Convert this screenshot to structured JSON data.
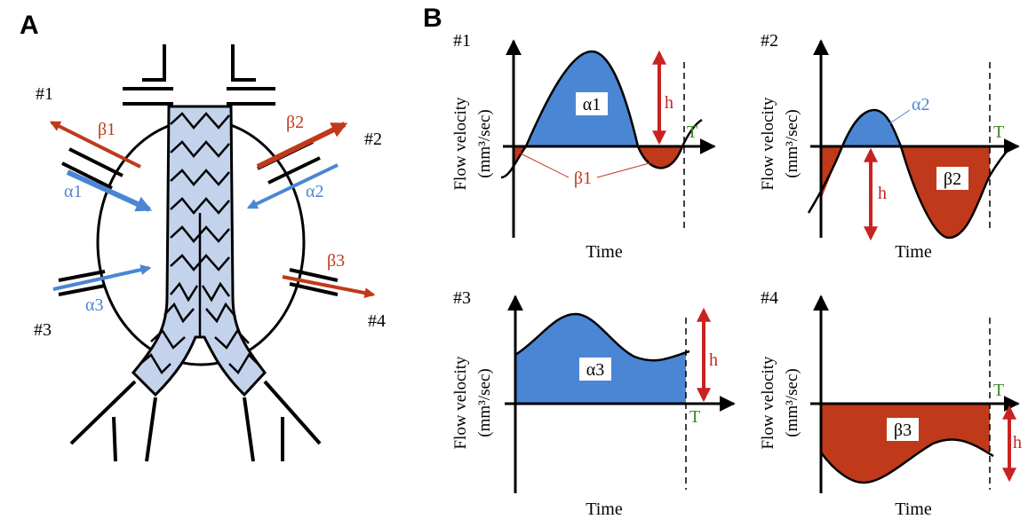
{
  "panel_a": {
    "label": "A",
    "ports": [
      {
        "id": "#1",
        "in": "α1",
        "out": "β1"
      },
      {
        "id": "#2",
        "in": "α2",
        "out": "β2"
      },
      {
        "id": "#3",
        "in": "α3"
      },
      {
        "id": "#4",
        "out": "β3"
      }
    ]
  },
  "panel_b": {
    "label": "B",
    "ylabel_line1": "Flow velocity",
    "ylabel_line2": "(mm³/sec)",
    "xlabel": "Time",
    "period_label": "T",
    "height_label": "h",
    "plots": [
      {
        "id": "#1",
        "pos_label": "α1",
        "neg_label": "β1"
      },
      {
        "id": "#2",
        "pos_label": "α2",
        "neg_label": "β2"
      },
      {
        "id": "#3",
        "pos_label": "α3"
      },
      {
        "id": "#4",
        "neg_label": "β3"
      }
    ]
  },
  "colors": {
    "inflow": "#4a86d4",
    "outflow": "#c0391b",
    "stent_fill": "#c4d3ec",
    "period": "#3d8a2f",
    "arrow_h": "#c82323"
  }
}
